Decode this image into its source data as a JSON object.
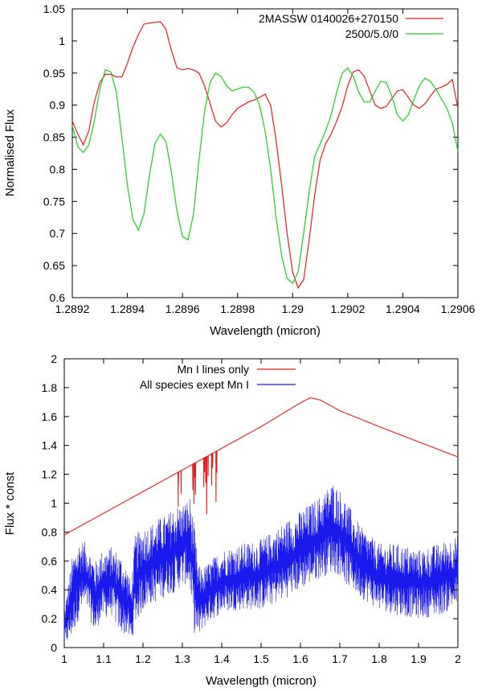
{
  "chart_data": [
    {
      "type": "line",
      "xlabel": "Wavelength (micron)",
      "ylabel": "Normalised Flux",
      "xlim": [
        1.2892,
        1.2906
      ],
      "ylim": [
        0.6,
        1.05
      ],
      "x_ticks": [
        "1.2892",
        "1.2894",
        "1.2896",
        "1.2898",
        "1.29",
        "1.2902",
        "1.2904",
        "1.2906"
      ],
      "y_ticks": [
        "0.6",
        "0.65",
        "0.7",
        "0.75",
        "0.8",
        "0.85",
        "0.9",
        "0.95",
        "1",
        "1.05"
      ],
      "legend_position": "top-right",
      "grid": false,
      "series": [
        {
          "name": "2MASSW 0140026+270150",
          "color": "#e0201e",
          "x": [
            1.2892,
            1.28922,
            1.28924,
            1.28926,
            1.28928,
            1.2893,
            1.28932,
            1.28934,
            1.28936,
            1.28938,
            1.2894,
            1.28942,
            1.28944,
            1.28946,
            1.28948,
            1.2895,
            1.28952,
            1.28954,
            1.28956,
            1.28958,
            1.2896,
            1.28962,
            1.28964,
            1.28966,
            1.28968,
            1.2897,
            1.28972,
            1.28974,
            1.28976,
            1.28978,
            1.2898,
            1.28982,
            1.28984,
            1.28986,
            1.28988,
            1.2899,
            1.28992,
            1.28994,
            1.28996,
            1.28998,
            1.29,
            1.29002,
            1.29004,
            1.29006,
            1.29008,
            1.2901,
            1.29012,
            1.29014,
            1.29016,
            1.29018,
            1.2902,
            1.29022,
            1.29024,
            1.29026,
            1.29028,
            1.2903,
            1.29032,
            1.29034,
            1.29036,
            1.29038,
            1.2904,
            1.29042,
            1.29044,
            1.29046,
            1.29048,
            1.2905,
            1.29052,
            1.29054,
            1.29056,
            1.29058,
            1.2906
          ],
          "y": [
            0.875,
            0.855,
            0.838,
            0.86,
            0.905,
            0.935,
            0.948,
            0.948,
            0.944,
            0.944,
            0.965,
            0.99,
            1.01,
            1.026,
            1.028,
            1.029,
            1.03,
            1.018,
            0.985,
            0.958,
            0.955,
            0.957,
            0.955,
            0.95,
            0.93,
            0.903,
            0.875,
            0.866,
            0.872,
            0.885,
            0.895,
            0.9,
            0.905,
            0.908,
            0.912,
            0.917,
            0.9,
            0.845,
            0.775,
            0.7,
            0.64,
            0.615,
            0.628,
            0.69,
            0.76,
            0.815,
            0.84,
            0.855,
            0.875,
            0.898,
            0.93,
            0.952,
            0.955,
            0.945,
            0.922,
            0.9,
            0.895,
            0.898,
            0.91,
            0.922,
            0.924,
            0.912,
            0.9,
            0.895,
            0.902,
            0.914,
            0.925,
            0.928,
            0.932,
            0.94,
            0.895
          ]
        },
        {
          "name": "2500/5.0/0",
          "color": "#22cc22",
          "x": [
            1.2892,
            1.28922,
            1.28924,
            1.28926,
            1.28928,
            1.2893,
            1.28932,
            1.28934,
            1.28936,
            1.28938,
            1.2894,
            1.28942,
            1.28944,
            1.28946,
            1.28948,
            1.2895,
            1.28952,
            1.28954,
            1.28956,
            1.28958,
            1.2896,
            1.28962,
            1.28964,
            1.28966,
            1.28968,
            1.2897,
            1.28972,
            1.28974,
            1.28976,
            1.28978,
            1.2898,
            1.28982,
            1.28984,
            1.28986,
            1.28988,
            1.2899,
            1.28992,
            1.28994,
            1.28996,
            1.28998,
            1.29,
            1.29002,
            1.29004,
            1.29006,
            1.29008,
            1.2901,
            1.29012,
            1.29014,
            1.29016,
            1.29018,
            1.2902,
            1.29022,
            1.29024,
            1.29026,
            1.29028,
            1.2903,
            1.29032,
            1.29034,
            1.29036,
            1.29038,
            1.2904,
            1.29042,
            1.29044,
            1.29046,
            1.29048,
            1.2905,
            1.29052,
            1.29054,
            1.29056,
            1.29058,
            1.2906
          ],
          "y": [
            0.868,
            0.835,
            0.826,
            0.838,
            0.875,
            0.925,
            0.955,
            0.952,
            0.92,
            0.85,
            0.775,
            0.722,
            0.705,
            0.73,
            0.79,
            0.84,
            0.855,
            0.843,
            0.795,
            0.735,
            0.695,
            0.69,
            0.73,
            0.815,
            0.89,
            0.935,
            0.95,
            0.945,
            0.93,
            0.922,
            0.925,
            0.928,
            0.928,
            0.92,
            0.9,
            0.86,
            0.8,
            0.725,
            0.665,
            0.63,
            0.622,
            0.64,
            0.7,
            0.765,
            0.82,
            0.84,
            0.86,
            0.885,
            0.92,
            0.95,
            0.958,
            0.945,
            0.92,
            0.905,
            0.905,
            0.922,
            0.937,
            0.935,
            0.914,
            0.885,
            0.875,
            0.885,
            0.908,
            0.93,
            0.942,
            0.937,
            0.925,
            0.91,
            0.895,
            0.872,
            0.828
          ]
        }
      ]
    },
    {
      "type": "line",
      "xlabel": "Wavelength (micron)",
      "ylabel": "Flux * const",
      "xlim": [
        1.0,
        2.0
      ],
      "ylim": [
        0,
        2
      ],
      "x_ticks": [
        "1",
        "1.1",
        "1.2",
        "1.3",
        "1.4",
        "1.5",
        "1.6",
        "1.7",
        "1.8",
        "1.9",
        "2"
      ],
      "y_ticks": [
        "0",
        "0.2",
        "0.4",
        "0.6",
        "0.8",
        "1",
        "1.2",
        "1.4",
        "1.6",
        "1.8",
        "2"
      ],
      "legend_position": "top-center",
      "grid": false,
      "series": [
        {
          "name": "Mn I lines only",
          "color": "#e0201e",
          "continuum": {
            "x": [
              1.0,
              1.1,
              1.2,
              1.3,
              1.4,
              1.5,
              1.6,
              1.625,
              1.65,
              1.7,
              1.8,
              1.9,
              2.0
            ],
            "y": [
              0.78,
              0.93,
              1.08,
              1.23,
              1.38,
              1.53,
              1.695,
              1.73,
              1.715,
              1.64,
              1.53,
              1.425,
              1.32
            ]
          },
          "absorption_lines": {
            "x": [
              1.2895,
              1.2902,
              1.297,
              1.3265,
              1.3295,
              1.3315,
              1.3335,
              1.3545,
              1.3565,
              1.3595,
              1.362,
              1.3655,
              1.3745,
              1.377,
              1.3855,
              1.3875
            ],
            "depth": [
              0.24,
              0.08,
              0.16,
              0.18,
              0.28,
              0.1,
              0.22,
              0.2,
              0.1,
              0.18,
              0.4,
              0.14,
              0.22,
              0.1,
              0.35,
              0.15
            ]
          }
        },
        {
          "name": "All species exept Mn I",
          "color": "#1a1aee",
          "upper_envelope": {
            "x": [
              1.0,
              1.01,
              1.02,
              1.03,
              1.04,
              1.05,
              1.06,
              1.07,
              1.08,
              1.09,
              1.1,
              1.12,
              1.14,
              1.16,
              1.17,
              1.18,
              1.2,
              1.22,
              1.24,
              1.26,
              1.28,
              1.3,
              1.31,
              1.32,
              1.33,
              1.34,
              1.35,
              1.37,
              1.4,
              1.45,
              1.5,
              1.55,
              1.6,
              1.65,
              1.68,
              1.7,
              1.72,
              1.75,
              1.8,
              1.85,
              1.9,
              1.95,
              2.0
            ],
            "y": [
              0.25,
              0.45,
              0.62,
              0.7,
              0.75,
              0.74,
              0.7,
              0.65,
              0.6,
              0.66,
              0.68,
              0.7,
              0.66,
              0.55,
              0.45,
              0.78,
              0.84,
              0.86,
              0.9,
              0.92,
              0.98,
              1.0,
              1.02,
              1.05,
              0.85,
              0.58,
              0.55,
              0.6,
              0.68,
              0.72,
              0.75,
              0.85,
              0.95,
              1.05,
              1.15,
              1.1,
              1.0,
              0.85,
              0.72,
              0.72,
              0.68,
              0.72,
              0.78
            ]
          },
          "lower_envelope": {
            "x": [
              1.0,
              1.01,
              1.02,
              1.03,
              1.04,
              1.05,
              1.06,
              1.07,
              1.08,
              1.09,
              1.1,
              1.12,
              1.14,
              1.16,
              1.17,
              1.18,
              1.2,
              1.22,
              1.24,
              1.26,
              1.28,
              1.3,
              1.31,
              1.32,
              1.33,
              1.34,
              1.35,
              1.37,
              1.4,
              1.45,
              1.5,
              1.55,
              1.6,
              1.65,
              1.68,
              1.7,
              1.72,
              1.75,
              1.8,
              1.85,
              1.9,
              1.95,
              2.0
            ],
            "y": [
              0.0,
              0.03,
              0.07,
              0.15,
              0.22,
              0.26,
              0.25,
              0.15,
              0.07,
              0.18,
              0.2,
              0.22,
              0.1,
              0.08,
              0.02,
              0.15,
              0.25,
              0.3,
              0.32,
              0.36,
              0.38,
              0.42,
              0.44,
              0.38,
              0.1,
              0.05,
              0.12,
              0.18,
              0.24,
              0.26,
              0.26,
              0.32,
              0.4,
              0.48,
              0.52,
              0.5,
              0.42,
              0.35,
              0.26,
              0.22,
              0.2,
              0.22,
              0.28
            ]
          }
        }
      ]
    }
  ]
}
